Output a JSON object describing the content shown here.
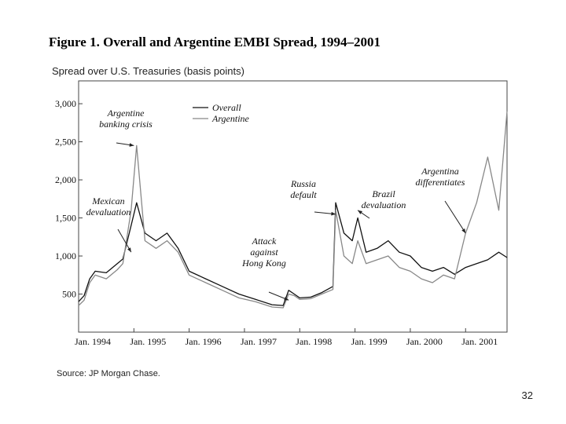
{
  "title": "Figure 1. Overall and Argentine EMBI Spread, 1994–2001",
  "ylabel": "Spread over U.S. Treasuries (basis points)",
  "source": "Source: JP Morgan Chase.",
  "page_number": "32",
  "chart_data": {
    "type": "line",
    "title": "Figure 1. Overall and Argentine EMBI Spread, 1994–2001",
    "ylabel": "Spread over U.S. Treasuries (basis points)",
    "xlabel": "",
    "xlim": [
      1994.0,
      2001.75
    ],
    "ylim": [
      0,
      3300
    ],
    "y_ticks": [
      500,
      1000,
      1500,
      2000,
      2500,
      3000
    ],
    "y_tick_labels": [
      "500",
      "1,000",
      "1,500",
      "2,000",
      "2,500",
      "3,000"
    ],
    "x_ticks": [
      1994,
      1995,
      1996,
      1997,
      1998,
      1999,
      2000,
      2001
    ],
    "x_tick_labels": [
      "Jan. 1994",
      "Jan. 1995",
      "Jan. 1996",
      "Jan. 1997",
      "Jan. 1998",
      "Jan. 1999",
      "Jan. 2000",
      "Jan. 2001"
    ],
    "legend": [
      "Overall",
      "Argentine"
    ],
    "grid": false,
    "series": [
      {
        "name": "Overall",
        "x": [
          1994.0,
          1994.1,
          1994.2,
          1994.3,
          1994.5,
          1994.7,
          1994.8,
          1994.95,
          1995.05,
          1995.2,
          1995.4,
          1995.6,
          1995.8,
          1996.0,
          1996.3,
          1996.6,
          1996.9,
          1997.2,
          1997.5,
          1997.7,
          1997.8,
          1997.9,
          1998.0,
          1998.2,
          1998.4,
          1998.6,
          1998.65,
          1998.8,
          1998.95,
          1999.05,
          1999.2,
          1999.4,
          1999.6,
          1999.8,
          2000.0,
          2000.2,
          2000.4,
          2000.6,
          2000.8,
          2001.0,
          2001.2,
          2001.4,
          2001.6,
          2001.75
        ],
        "values": [
          400,
          480,
          700,
          800,
          780,
          900,
          960,
          1400,
          1700,
          1300,
          1200,
          1300,
          1100,
          800,
          700,
          600,
          500,
          430,
          360,
          350,
          550,
          500,
          450,
          460,
          520,
          600,
          1700,
          1300,
          1200,
          1500,
          1050,
          1100,
          1200,
          1050,
          1000,
          850,
          800,
          850,
          760,
          850,
          900,
          950,
          1050,
          980
        ]
      },
      {
        "name": "Argentine",
        "x": [
          1994.0,
          1994.1,
          1994.2,
          1994.3,
          1994.5,
          1994.7,
          1994.8,
          1994.95,
          1995.05,
          1995.2,
          1995.4,
          1995.6,
          1995.8,
          1996.0,
          1996.3,
          1996.6,
          1996.9,
          1997.2,
          1997.5,
          1997.7,
          1997.8,
          1997.9,
          1998.0,
          1998.2,
          1998.4,
          1998.6,
          1998.65,
          1998.8,
          1998.95,
          1999.05,
          1999.2,
          1999.4,
          1999.6,
          1999.8,
          2000.0,
          2000.2,
          2000.4,
          2000.6,
          2000.8,
          2001.0,
          2001.2,
          2001.4,
          2001.6,
          2001.75
        ],
        "values": [
          350,
          420,
          650,
          750,
          700,
          820,
          900,
          1600,
          2450,
          1200,
          1100,
          1200,
          1050,
          750,
          650,
          550,
          450,
          400,
          330,
          320,
          500,
          480,
          430,
          440,
          500,
          560,
          1600,
          1000,
          900,
          1200,
          900,
          950,
          1000,
          850,
          800,
          700,
          650,
          750,
          700,
          1300,
          1700,
          2300,
          1600,
          2900
        ]
      }
    ],
    "annotations": [
      {
        "lines": [
          "Argentine",
          "banking crisis"
        ],
        "x": 1995.0,
        "y": 2450
      },
      {
        "lines": [
          "Mexican",
          "devaluation"
        ],
        "x": 1994.95,
        "y": 1050
      },
      {
        "lines": [
          "Attack",
          "against",
          "Hong Kong"
        ],
        "x": 1997.8,
        "y": 420
      },
      {
        "lines": [
          "Russia",
          "default"
        ],
        "x": 1998.65,
        "y": 1550
      },
      {
        "lines": [
          "Brazil",
          "devaluation"
        ],
        "x": 1999.05,
        "y": 1600
      },
      {
        "lines": [
          "Argentina",
          "differentiates"
        ],
        "x": 2001.0,
        "y": 1300
      }
    ]
  }
}
